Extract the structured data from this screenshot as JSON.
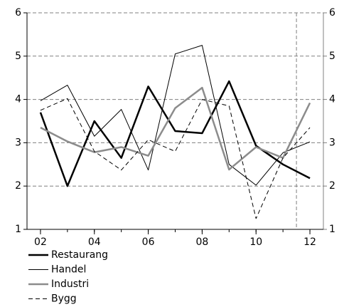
{
  "chart_data": {
    "type": "line",
    "x": [
      2,
      3,
      4,
      5,
      6,
      7,
      8,
      9,
      10,
      11,
      12
    ],
    "series": [
      {
        "name": "Restaurang",
        "color": "#000000",
        "width": 2.5,
        "dash": "none",
        "values": [
          3.7,
          2.0,
          3.5,
          2.65,
          4.3,
          3.27,
          3.22,
          4.42,
          2.93,
          2.5,
          2.18
        ]
      },
      {
        "name": "Handel",
        "color": "#000000",
        "width": 1,
        "dash": "none",
        "values": [
          3.97,
          4.33,
          3.15,
          3.77,
          2.37,
          5.05,
          5.25,
          2.5,
          2.02,
          2.77,
          3.02
        ]
      },
      {
        "name": "Industri",
        "color": "#8c8c8c",
        "width": 2.5,
        "dash": "none",
        "values": [
          3.35,
          3.03,
          2.78,
          2.9,
          2.7,
          3.8,
          4.27,
          2.38,
          2.9,
          2.65,
          3.92
        ]
      },
      {
        "name": "Bygg",
        "color": "#000000",
        "width": 1,
        "dash": "6,4",
        "values": [
          3.75,
          4.02,
          2.8,
          2.37,
          3.07,
          2.8,
          4.0,
          3.85,
          1.25,
          2.65,
          3.35
        ]
      }
    ],
    "xlim": [
      1.5,
      12.5
    ],
    "xticks": [
      {
        "value": 2,
        "label": "02"
      },
      {
        "value": 4,
        "label": "04"
      },
      {
        "value": 6,
        "label": "06"
      },
      {
        "value": 8,
        "label": "08"
      },
      {
        "value": 10,
        "label": "10"
      },
      {
        "value": 12,
        "label": "12"
      }
    ],
    "ylim": [
      1,
      6
    ],
    "yticks": [
      1,
      2,
      3,
      4,
      5,
      6
    ],
    "y2lim": [
      1,
      6
    ],
    "y2ticks": [
      1,
      2,
      3,
      4,
      5,
      6
    ],
    "vline": 11.5,
    "grid": true
  }
}
